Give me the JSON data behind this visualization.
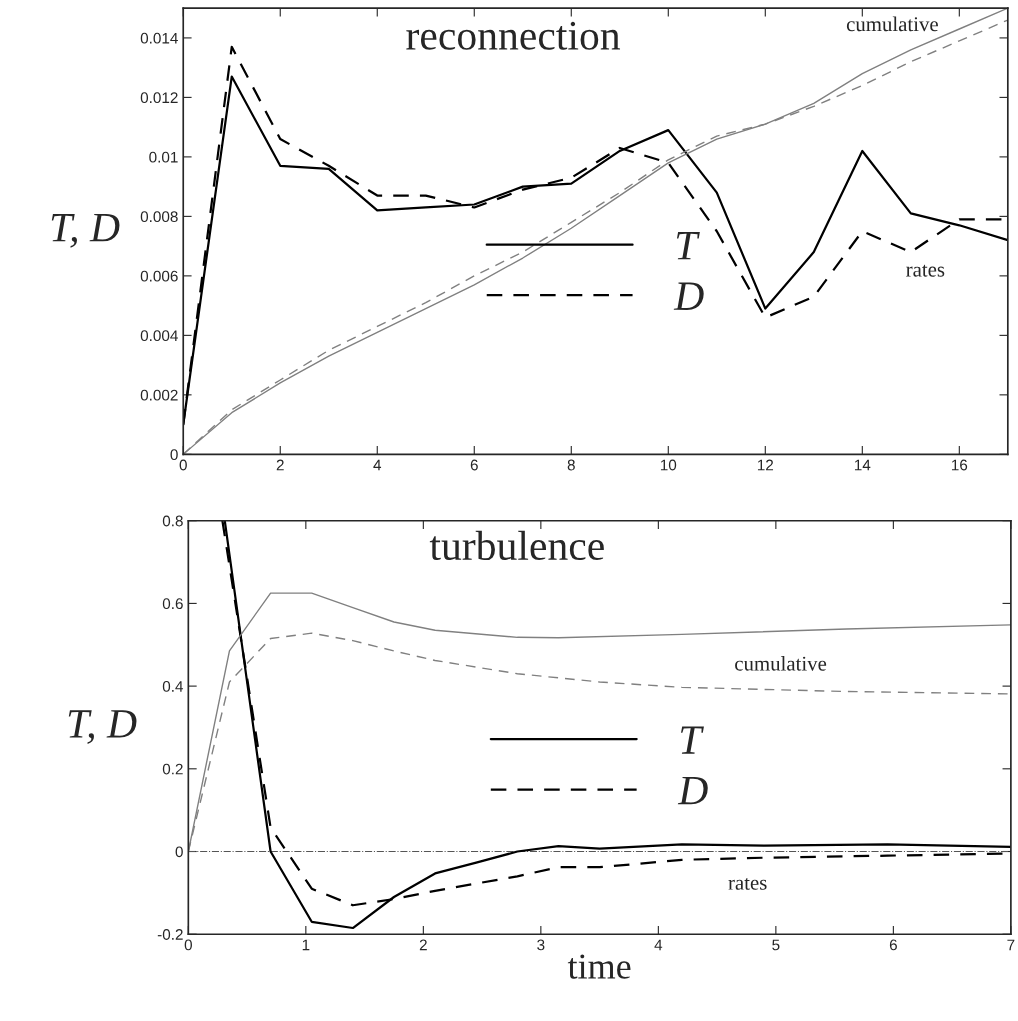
{
  "chart_data": [
    {
      "type": "line",
      "title": "reconnection",
      "ylabel": "T, D",
      "xlim": [
        0,
        17
      ],
      "ylim": [
        0,
        0.015
      ],
      "xticks": [
        0,
        2,
        4,
        6,
        8,
        10,
        12,
        14,
        16
      ],
      "yticks": [
        0,
        0.002,
        0.004,
        0.006,
        0.008,
        0.01,
        0.012,
        0.014
      ],
      "grid": false,
      "legend": "bottom",
      "marker": "none",
      "annotations": [
        "cumulative",
        "rates"
      ],
      "series": [
        {
          "name": "T",
          "color": "#000000",
          "line_style": "solid",
          "x": [
            0,
            1,
            2,
            3,
            4,
            5,
            6,
            7,
            8,
            9,
            10,
            11,
            12,
            13,
            14,
            15,
            16,
            17
          ],
          "values": [
            0.001,
            0.0127,
            0.0097,
            0.0096,
            0.0082,
            0.0083,
            0.0084,
            0.009,
            0.0091,
            0.0102,
            0.0109,
            0.0088,
            0.0049,
            0.0068,
            0.0102,
            0.0081,
            0.0077,
            0.0072
          ]
        },
        {
          "name": "D",
          "color": "#000000",
          "line_style": "dashed",
          "x": [
            0,
            1,
            2,
            3,
            4,
            5,
            6,
            7,
            8,
            9,
            10,
            11,
            12,
            13,
            14,
            15,
            16,
            17
          ],
          "values": [
            0.001,
            0.0137,
            0.0106,
            0.0097,
            0.0087,
            0.0087,
            0.0083,
            0.0089,
            0.0093,
            0.0103,
            0.0098,
            0.0075,
            0.0046,
            0.0053,
            0.0075,
            0.0068,
            0.0079,
            0.0079
          ]
        },
        {
          "color": "#808080",
          "line_style": "solid",
          "x": [
            0,
            1,
            2,
            3,
            4,
            5,
            6,
            7,
            8,
            9,
            10,
            11,
            12,
            13,
            14,
            15,
            16,
            17
          ],
          "values": [
            0,
            0.0014,
            0.0024,
            0.0033,
            0.0041,
            0.0049,
            0.0057,
            0.0066,
            0.0076,
            0.0087,
            0.0098,
            0.0106,
            0.0111,
            0.0118,
            0.0128,
            0.0136,
            0.0143,
            0.015
          ]
        },
        {
          "color": "#808080",
          "line_style": "dashed",
          "x": [
            0,
            1,
            2,
            3,
            4,
            5,
            6,
            7,
            8,
            9,
            10,
            11,
            12,
            13,
            14,
            15,
            16,
            17
          ],
          "values": [
            0,
            0.0015,
            0.0025,
            0.0035,
            0.0043,
            0.0051,
            0.006,
            0.0068,
            0.0078,
            0.0088,
            0.0099,
            0.0107,
            0.0111,
            0.0117,
            0.0124,
            0.0132,
            0.0139,
            0.0146
          ]
        }
      ]
    },
    {
      "type": "line",
      "title": "turbulence",
      "xlabel": "time",
      "ylabel": "T, D",
      "xlim": [
        0,
        7
      ],
      "ylim": [
        -0.2,
        0.8
      ],
      "xticks": [
        0,
        1,
        2,
        3,
        4,
        5,
        6,
        7
      ],
      "yticks": [
        -0.2,
        0,
        0.2,
        0.4,
        0.6,
        0.8
      ],
      "grid": false,
      "legend": "center",
      "marker": "none",
      "ref_lines": [
        {
          "axis": "y",
          "value": 0,
          "color": "#555555",
          "line_style": "dashdot"
        }
      ],
      "annotations": [
        "cumulative",
        "rates"
      ],
      "series": [
        {
          "name": "T",
          "color": "#000000",
          "line_style": "solid",
          "x": [
            0.31,
            0.7,
            1.05,
            1.4,
            1.75,
            2.1,
            2.45,
            2.8,
            3.15,
            3.5,
            4.2,
            4.9,
            5.95,
            7
          ],
          "values": [
            0.8,
            0.0,
            -0.17,
            -0.185,
            -0.11,
            -0.053,
            -0.027,
            0.0,
            0.013,
            0.007,
            0.017,
            0.014,
            0.017,
            0.011
          ]
        },
        {
          "name": "D",
          "color": "#000000",
          "line_style": "dashed",
          "x": [
            0.29,
            0.7,
            1.05,
            1.4,
            1.75,
            2.1,
            2.8,
            3.15,
            3.5,
            4.2,
            4.9,
            5.95,
            7
          ],
          "values": [
            0.8,
            0.058,
            -0.09,
            -0.13,
            -0.115,
            -0.095,
            -0.06,
            -0.038,
            -0.038,
            -0.02,
            -0.015,
            -0.01,
            -0.005
          ]
        },
        {
          "color": "#808080",
          "line_style": "solid",
          "x": [
            0,
            0.35,
            0.7,
            1.05,
            1.4,
            1.75,
            2.1,
            2.8,
            3.15,
            4.2,
            5.6,
            7
          ],
          "values": [
            0,
            0.485,
            0.625,
            0.625,
            0.59,
            0.555,
            0.535,
            0.518,
            0.517,
            0.525,
            0.538,
            0.548
          ]
        },
        {
          "color": "#808080",
          "line_style": "dashed",
          "x": [
            0,
            0.35,
            0.7,
            1.05,
            1.4,
            1.75,
            2.1,
            2.8,
            3.5,
            4.2,
            5.6,
            7
          ],
          "values": [
            0,
            0.41,
            0.515,
            0.528,
            0.51,
            0.485,
            0.462,
            0.43,
            0.41,
            0.397,
            0.387,
            0.381
          ]
        }
      ]
    }
  ]
}
